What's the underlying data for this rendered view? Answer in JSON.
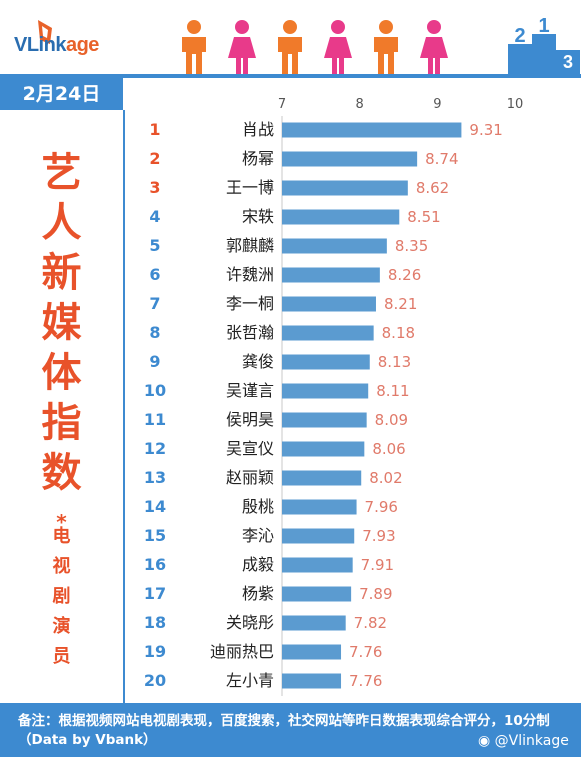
{
  "brand": {
    "logo_text_main": "VLink",
    "logo_text_sub": "age"
  },
  "header": {
    "date": "2月24日"
  },
  "title_chars": [
    "艺",
    "人",
    "新",
    "媒",
    "体",
    "指",
    "数"
  ],
  "title_star": "*",
  "subtitle_chars": [
    "电",
    "视",
    "剧",
    "演",
    "员"
  ],
  "footer": {
    "note": "备注：根据视频网站电视剧表现，百度搜索，社交网站等昨日数据表现综合评分，10分制（Data by Vbank）",
    "weibo": "@Vlinkage"
  },
  "colors": {
    "accent": "#3d8ad0",
    "bar": "#5b9bd0",
    "title": "#e8522a",
    "value": "#e07a6a",
    "top3": "#e8522a"
  },
  "chart_data": {
    "type": "bar",
    "orientation": "horizontal",
    "xlim": [
      7,
      10
    ],
    "xticks": [
      "7",
      "8",
      "9",
      "10"
    ],
    "ranks": [
      "1",
      "2",
      "3",
      "4",
      "5",
      "6",
      "7",
      "8",
      "9",
      "10",
      "11",
      "12",
      "13",
      "14",
      "15",
      "16",
      "17",
      "18",
      "19",
      "20"
    ],
    "categories": [
      "肖战",
      "杨幂",
      "王一博",
      "宋轶",
      "郭麒麟",
      "许魏洲",
      "李一桐",
      "张哲瀚",
      "龚俊",
      "吴谨言",
      "侯明昊",
      "吴宣仪",
      "赵丽颖",
      "殷桃",
      "李沁",
      "成毅",
      "杨紫",
      "关晓彤",
      "迪丽热巴",
      "左小青"
    ],
    "values": [
      9.31,
      8.74,
      8.62,
      8.51,
      8.35,
      8.26,
      8.21,
      8.18,
      8.13,
      8.11,
      8.09,
      8.06,
      8.02,
      7.96,
      7.93,
      7.91,
      7.89,
      7.82,
      7.76,
      7.76
    ],
    "value_labels": [
      "9.31",
      "8.74",
      "8.62",
      "8.51",
      "8.35",
      "8.26",
      "8.21",
      "8.18",
      "8.13",
      "8.11",
      "8.09",
      "8.06",
      "8.02",
      "7.96",
      "7.93",
      "7.91",
      "7.89",
      "7.82",
      "7.76",
      "7.76"
    ]
  }
}
